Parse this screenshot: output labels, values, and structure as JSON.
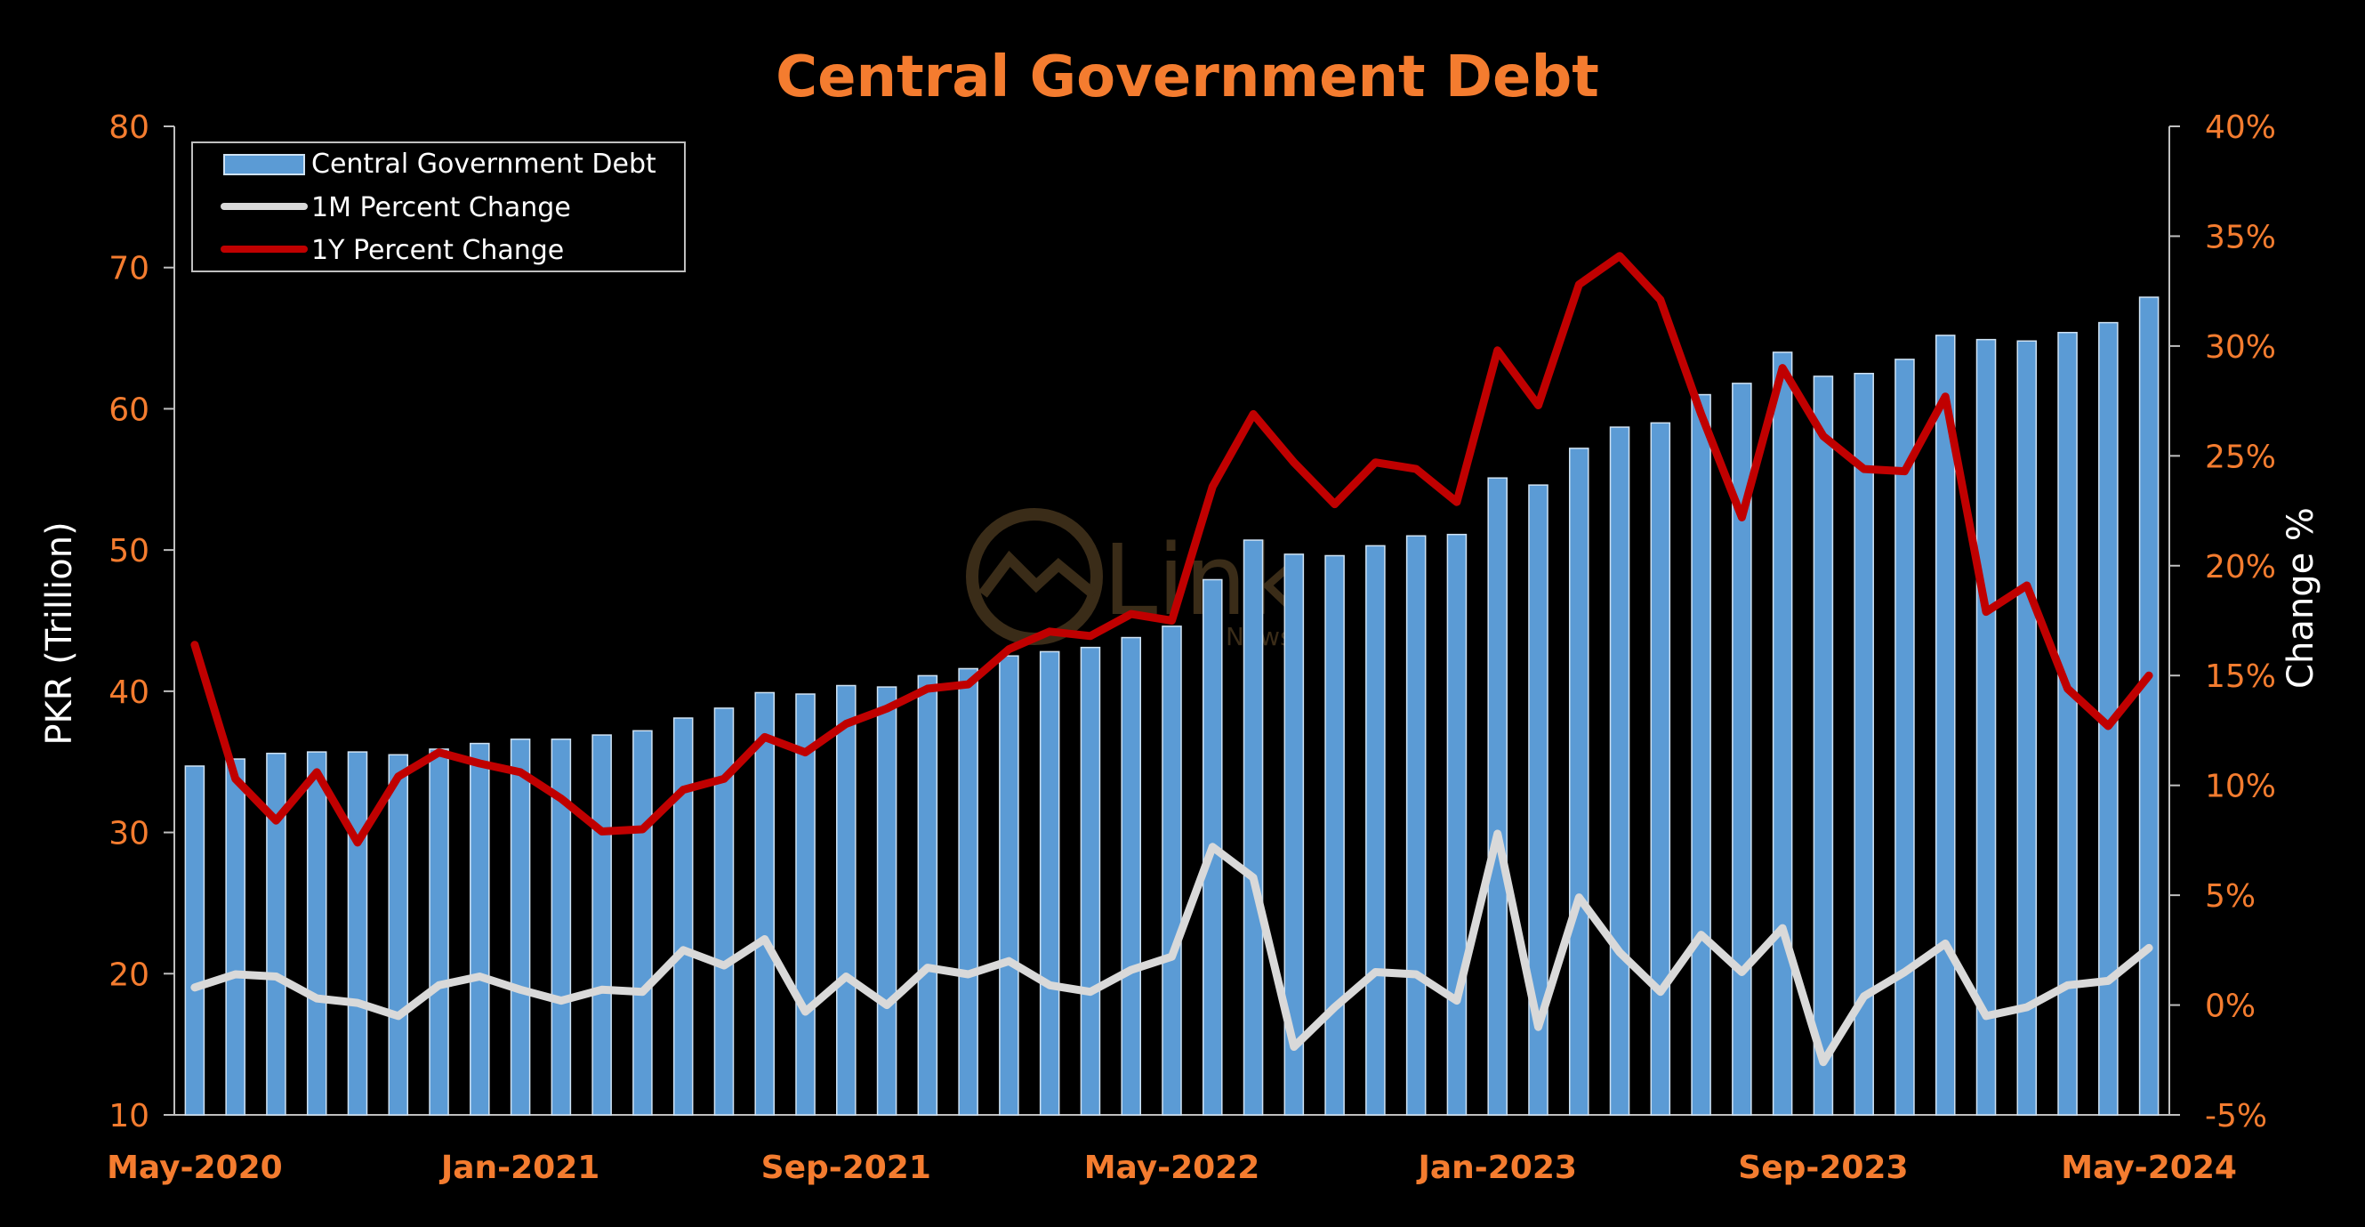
{
  "colors": {
    "background": "#000000",
    "accent": "#f47c2f",
    "bar_fill": "#5b9bd5",
    "bar_stroke": "#cfe2f3",
    "line_1m": "#d9d9d9",
    "line_1y": "#c00000",
    "axis": "#bfbfbf"
  },
  "watermark": {
    "text": "Link",
    "sub": "News"
  },
  "chart_data": {
    "type": "bar",
    "title": "Central Government Debt",
    "ylabel": "PKR (Trillion)",
    "y2label": "Change %",
    "ylim": [
      10,
      80
    ],
    "y2lim": [
      -5,
      40
    ],
    "yticks": [
      "10",
      "20",
      "30",
      "40",
      "50",
      "60",
      "70",
      "80"
    ],
    "y2ticks": [
      "-5%",
      "0%",
      "5%",
      "10%",
      "15%",
      "20%",
      "25%",
      "30%",
      "35%",
      "40%"
    ],
    "xtick_labels": [
      {
        "label": "May-2020",
        "index": 0
      },
      {
        "label": "Jan-2021",
        "index": 8
      },
      {
        "label": "Sep-2021",
        "index": 16
      },
      {
        "label": "May-2022",
        "index": 24
      },
      {
        "label": "Jan-2023",
        "index": 32
      },
      {
        "label": "Sep-2023",
        "index": 40
      },
      {
        "label": "May-2024",
        "index": 48
      }
    ],
    "grid": false,
    "legend_position": "top-left",
    "categories": [
      "May-2020",
      "Jun-2020",
      "Jul-2020",
      "Aug-2020",
      "Sep-2020",
      "Oct-2020",
      "Nov-2020",
      "Dec-2020",
      "Jan-2021",
      "Feb-2021",
      "Mar-2021",
      "Apr-2021",
      "May-2021",
      "Jun-2021",
      "Jul-2021",
      "Aug-2021",
      "Sep-2021",
      "Oct-2021",
      "Nov-2021",
      "Dec-2021",
      "Jan-2022",
      "Feb-2022",
      "Mar-2022",
      "Apr-2022",
      "May-2022",
      "Jun-2022",
      "Jul-2022",
      "Aug-2022",
      "Sep-2022",
      "Oct-2022",
      "Nov-2022",
      "Dec-2022",
      "Jan-2023",
      "Feb-2023",
      "Mar-2023",
      "Apr-2023",
      "May-2023",
      "Jun-2023",
      "Jul-2023",
      "Aug-2023",
      "Sep-2023",
      "Oct-2023",
      "Nov-2023",
      "Dec-2023",
      "Jan-2024",
      "Feb-2024",
      "Mar-2024",
      "Apr-2024",
      "May-2024"
    ],
    "series": [
      {
        "name": "Central Government Debt",
        "kind": "bar",
        "axis": "left",
        "values": [
          34.7,
          35.2,
          35.6,
          35.7,
          35.7,
          35.5,
          35.9,
          36.3,
          36.6,
          36.6,
          36.9,
          37.2,
          38.1,
          38.8,
          39.9,
          39.8,
          40.4,
          40.3,
          41.1,
          41.6,
          42.5,
          42.8,
          43.1,
          43.8,
          44.6,
          47.9,
          50.7,
          49.7,
          49.6,
          50.3,
          51.0,
          51.1,
          55.1,
          54.6,
          57.2,
          58.7,
          59.0,
          61.0,
          61.8,
          64.0,
          62.3,
          62.5,
          63.5,
          65.2,
          64.9,
          64.8,
          65.4,
          66.1,
          67.9
        ]
      },
      {
        "name": "1M Percent Change",
        "kind": "line",
        "axis": "right",
        "values": [
          0.8,
          1.4,
          1.3,
          0.3,
          0.1,
          -0.5,
          0.9,
          1.3,
          0.7,
          0.2,
          0.7,
          0.6,
          2.5,
          1.8,
          3.0,
          -0.3,
          1.3,
          0.0,
          1.7,
          1.4,
          2.0,
          0.9,
          0.6,
          1.6,
          2.2,
          7.2,
          5.8,
          -1.9,
          -0.1,
          1.5,
          1.4,
          0.2,
          7.8,
          -1.0,
          4.9,
          2.4,
          0.6,
          3.2,
          1.5,
          3.5,
          -2.6,
          0.4,
          1.5,
          2.8,
          -0.5,
          -0.1,
          0.9,
          1.1,
          2.6
        ]
      },
      {
        "name": "1Y Percent Change",
        "kind": "line",
        "axis": "right",
        "values": [
          16.4,
          10.3,
          8.4,
          10.6,
          7.4,
          10.4,
          11.5,
          11.0,
          10.6,
          9.4,
          7.9,
          8.0,
          9.8,
          10.3,
          12.2,
          11.5,
          12.8,
          13.5,
          14.4,
          14.6,
          16.2,
          17.0,
          16.8,
          17.8,
          17.5,
          23.6,
          26.9,
          24.7,
          22.8,
          24.7,
          24.4,
          22.9,
          29.8,
          27.3,
          32.8,
          34.1,
          32.1,
          26.9,
          22.2,
          29.0,
          25.9,
          24.4,
          24.3,
          27.7,
          17.9,
          19.1,
          14.4,
          12.7,
          15.0
        ]
      }
    ]
  }
}
